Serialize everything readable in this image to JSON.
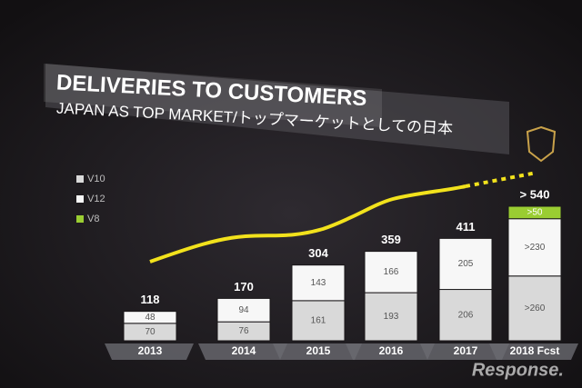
{
  "chart_data": {
    "type": "stacked-bar",
    "title": "DELIVERIES TO CUSTOMERS",
    "subtitle": "JAPAN AS TOP MARKET/トップマーケットとしての日本",
    "categories": [
      "2013",
      "2014",
      "2015",
      "2016",
      "2017",
      "2018 Fcst"
    ],
    "series": [
      {
        "name": "V10",
        "color": "#d9d9d9",
        "values": [
          70,
          76,
          161,
          193,
          206,
          260
        ],
        "value_labels": [
          "70",
          "76",
          "161",
          "193",
          "206",
          ">260"
        ]
      },
      {
        "name": "V12",
        "color": "#f7f7f7",
        "values": [
          48,
          94,
          143,
          166,
          205,
          230
        ],
        "value_labels": [
          "48",
          "94",
          "143",
          "166",
          "205",
          ">230"
        ]
      },
      {
        "name": "V8",
        "color": "#9acd32",
        "values": [
          null,
          null,
          null,
          null,
          null,
          50
        ],
        "value_labels": [
          null,
          null,
          null,
          null,
          null,
          ">50"
        ]
      }
    ],
    "totals": [
      118,
      170,
      304,
      359,
      411,
      540
    ],
    "total_labels": [
      "118",
      "170",
      "304",
      "359",
      "411",
      "> 540"
    ],
    "watermark": "Response."
  }
}
